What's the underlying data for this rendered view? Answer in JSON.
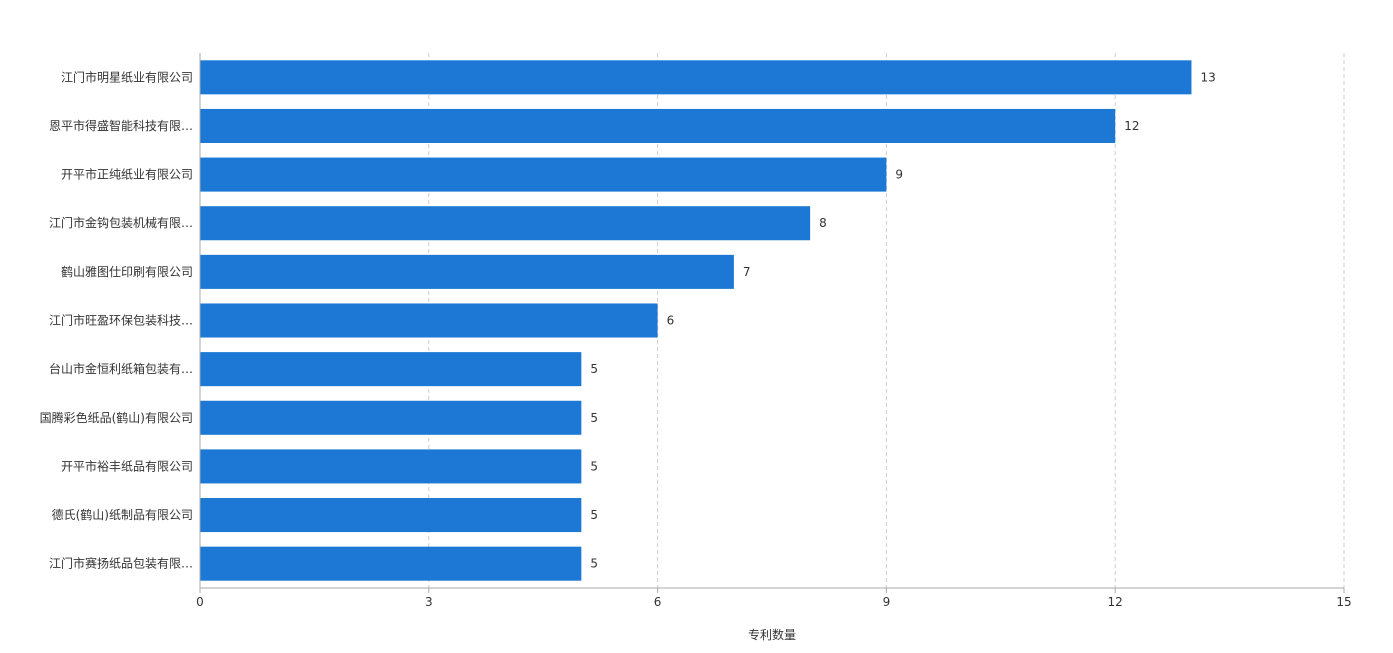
{
  "chart_data": {
    "type": "bar",
    "orientation": "horizontal",
    "categories": [
      "江门市明星纸业有限公司",
      "恩平市得盛智能科技有限…",
      "开平市正纯纸业有限公司",
      "江门市金钩包装机械有限…",
      "鹤山雅图仕印刷有限公司",
      "江门市旺盈环保包装科技…",
      "台山市金恒利纸箱包装有…",
      "国腾彩色纸品(鹤山)有限公司",
      "开平市裕丰纸品有限公司",
      "德氏(鹤山)纸制品有限公司",
      "江门市赛扬纸品包装有限…"
    ],
    "values": [
      13,
      12,
      9,
      8,
      7,
      6,
      5,
      5,
      5,
      5,
      5
    ],
    "xlabel": "专利数量",
    "ylabel": "",
    "xlim": [
      0,
      15
    ],
    "xticks": [
      "0",
      "3",
      "6",
      "9",
      "12",
      "15"
    ],
    "grid": "vertical-dashed",
    "bar_color": "#1c78d4",
    "data_labels": true
  }
}
